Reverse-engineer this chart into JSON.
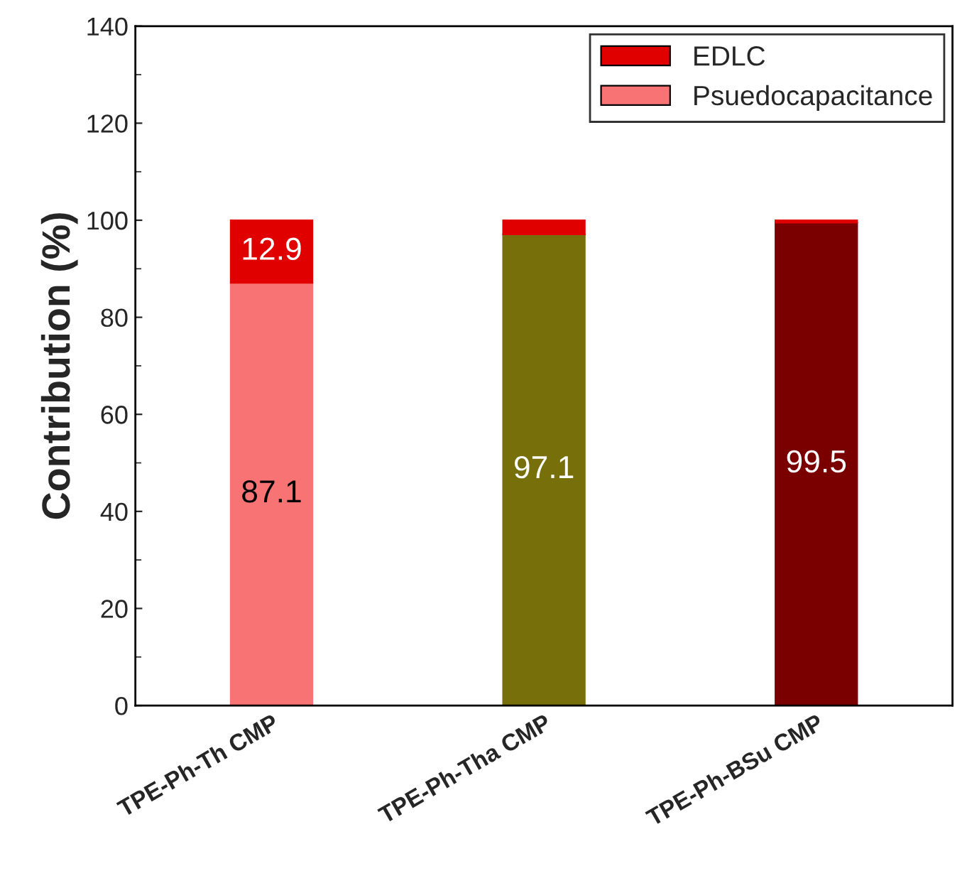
{
  "chart_data": {
    "type": "bar",
    "stacked": true,
    "ylabel": "Contribution (%)",
    "categories": [
      "TPE-Ph-Th CMP",
      "TPE-Ph-Tha CMP",
      "TPE-Ph-BSu CMP"
    ],
    "series": [
      {
        "name": "Psuedocapacitance",
        "colors": [
          "#f87474",
          "#77700a",
          "#7a0000"
        ],
        "values": [
          87.1,
          97.1,
          99.5
        ],
        "value_labels": [
          "87.1",
          "97.1",
          "99.5"
        ]
      },
      {
        "name": "EDLC",
        "colors": [
          "#e00000",
          "#e00000",
          "#e00000"
        ],
        "values": [
          12.9,
          2.9,
          0.5
        ],
        "value_labels": [
          "12.9",
          null,
          null
        ]
      }
    ],
    "ylim": [
      0,
      140
    ],
    "yticks": [
      0,
      20,
      40,
      60,
      80,
      100,
      120,
      140
    ],
    "legend": "top right",
    "grid": false
  }
}
